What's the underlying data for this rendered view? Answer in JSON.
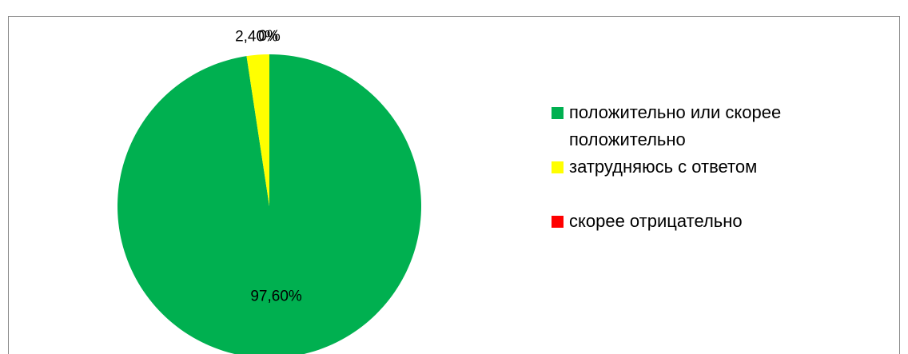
{
  "chart_data": {
    "type": "pie",
    "categories": [
      "положительно или скорее положительно",
      "затрудняюсь с ответом",
      "скорее отрицательно"
    ],
    "values": [
      97.6,
      2.4,
      0
    ],
    "value_labels": [
      "97,60%",
      "2,40%",
      "0%"
    ],
    "colors": [
      "#00b050",
      "#ffff00",
      "#ff0000"
    ],
    "legend": "right"
  }
}
